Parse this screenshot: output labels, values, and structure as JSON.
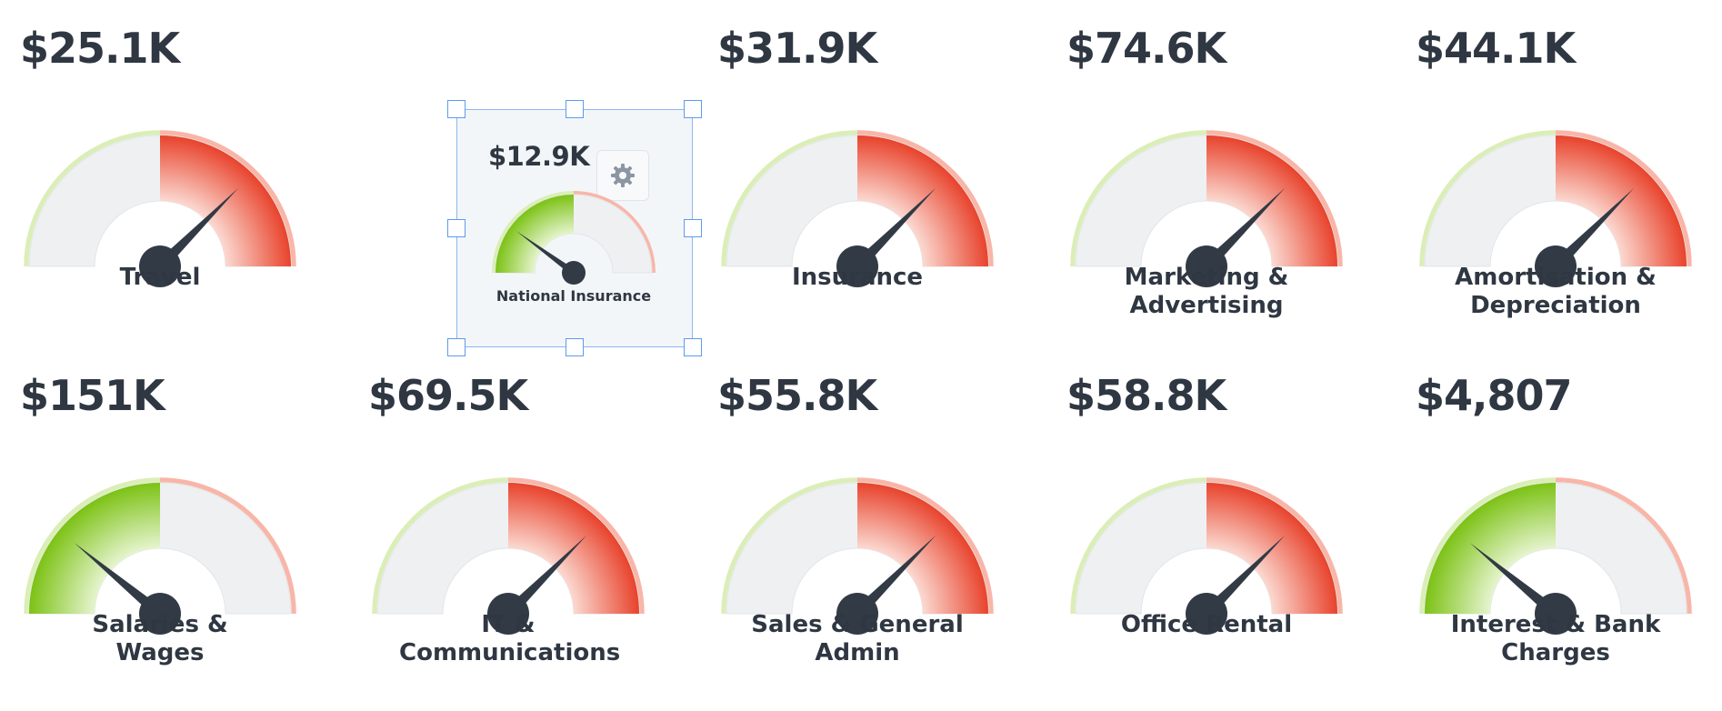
{
  "colors": {
    "red_dark": "#e8432c",
    "red_light": "#f8b6a8",
    "green_dark": "#7cc215",
    "green_light": "#dbeeb7",
    "track": "#eff0f2",
    "hub": "#323a45",
    "text": "#2f3742",
    "selection_border": "#5d9bec",
    "gear": "#8c96a3"
  },
  "gauges": [
    {
      "id": "travel",
      "value": "$25.1K",
      "label": "Travel",
      "zone": "red",
      "level": 0.75
    },
    {
      "id": "national-insurance",
      "value": "$12.9K",
      "label": "National Insurance",
      "zone": "green",
      "level": 0.2,
      "selected": true
    },
    {
      "id": "insurance",
      "value": "$31.9K",
      "label": "Insurance",
      "zone": "red",
      "level": 0.75
    },
    {
      "id": "marketing",
      "value": "$74.6K",
      "label": "Marketing & Advertising",
      "zone": "red",
      "level": 0.75
    },
    {
      "id": "amortisation",
      "value": "$44.1K",
      "label": "Amortisation & Depreciation",
      "zone": "red",
      "level": 0.75
    },
    {
      "id": "salaries",
      "value": "$151K",
      "label": "Salaries & Wages",
      "zone": "green",
      "level": 0.22
    },
    {
      "id": "it-communications",
      "value": "$69.5K",
      "label": "IT & Communications",
      "zone": "red",
      "level": 0.75
    },
    {
      "id": "sales-admin",
      "value": "$55.8K",
      "label": "Sales & General Admin",
      "zone": "red",
      "level": 0.75
    },
    {
      "id": "office-rental",
      "value": "$58.8K",
      "label": "Office Rental",
      "zone": "red",
      "level": 0.75
    },
    {
      "id": "interest-bank",
      "value": "$4,807",
      "label": "Interest & Bank Charges",
      "zone": "green",
      "level": 0.22
    }
  ],
  "selection": {
    "settings_icon": "gear-icon"
  }
}
